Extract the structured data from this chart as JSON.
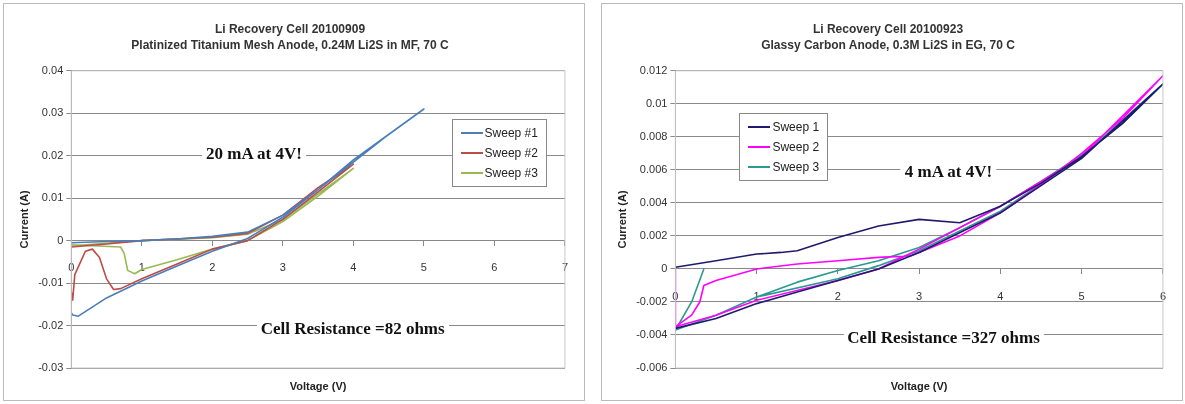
{
  "chart_data": [
    {
      "type": "line",
      "title": "Li Recovery Cell 20100909",
      "subtitle": "Platinized Titanium Mesh Anode, 0.24M Li2S in MF, 70 C",
      "xlabel": "Voltage (V)",
      "ylabel": "Current (A)",
      "xlim": [
        0,
        7
      ],
      "xticks": [
        0,
        1,
        2,
        3,
        4,
        5,
        6,
        7
      ],
      "ylim": [
        -0.03,
        0.04
      ],
      "yticks": [
        -0.03,
        -0.02,
        -0.01,
        0,
        0.01,
        0.02,
        0.03,
        0.04
      ],
      "grid": "y",
      "legend": "top right",
      "annotations": [
        "20 mA at 4V!",
        "Cell Resistance =82 ohms"
      ],
      "series": [
        {
          "name": "Sweep #1",
          "color": "#4a7ebb",
          "x": [
            0,
            0.5,
            1,
            1.5,
            2,
            2.5,
            3,
            3.5,
            4,
            4.5,
            5,
            4.5,
            4,
            3.5,
            3,
            2.5,
            2,
            1.5,
            1,
            0.5,
            0.1,
            0.02,
            0
          ],
          "values": [
            -0.0005,
            -0.0002,
            0,
            0.0004,
            0.001,
            0.002,
            0.006,
            0.012,
            0.019,
            0.025,
            0.031,
            0.025,
            0.0185,
            0.012,
            0.0055,
            0.0005,
            -0.0025,
            -0.006,
            -0.0095,
            -0.0135,
            -0.0178,
            -0.0175,
            -0.017
          ]
        },
        {
          "name": "Sweep #2",
          "color": "#be4b48",
          "x": [
            0,
            0.5,
            1,
            2,
            2.5,
            3,
            3.5,
            4,
            3.5,
            3,
            2.5,
            2,
            1.5,
            1,
            0.7,
            0.6,
            0.5,
            0.4,
            0.3,
            0.2,
            0.05,
            0.02,
            0
          ],
          "values": [
            -0.0015,
            -0.0008,
            0,
            0.0008,
            0.0017,
            0.006,
            0.0125,
            0.018,
            0.0115,
            0.005,
            0,
            -0.002,
            -0.0055,
            -0.009,
            -0.0113,
            -0.0115,
            -0.009,
            -0.004,
            -0.002,
            -0.0025,
            -0.008,
            -0.014,
            -0.012
          ]
        },
        {
          "name": "Sweep #3",
          "color": "#98b954",
          "x": [
            0,
            0.5,
            1,
            2,
            2.5,
            3,
            3.5,
            4,
            3.5,
            3,
            2.5,
            2,
            1.5,
            1,
            0.9,
            0.8,
            0.75,
            0.7,
            0.3,
            0
          ],
          "values": [
            -0.0012,
            -0.0006,
            0,
            0.0007,
            0.0015,
            0.005,
            0.011,
            0.017,
            0.0105,
            0.0045,
            0,
            -0.002,
            -0.0045,
            -0.0068,
            -0.0078,
            -0.007,
            -0.003,
            -0.0015,
            -0.0012,
            -0.001
          ]
        }
      ]
    },
    {
      "type": "line",
      "title": "Li Recovery Cell 20100923",
      "subtitle": "Glassy Carbon Anode, 0.3M Li2S in EG, 70 C",
      "xlabel": "Voltage (V)",
      "ylabel": "Current (A)",
      "xlim": [
        0,
        6
      ],
      "xticks": [
        0,
        1,
        2,
        3,
        4,
        5,
        6
      ],
      "ylim": [
        -0.006,
        0.012
      ],
      "yticks": [
        -0.006,
        -0.004,
        -0.002,
        0,
        0.002,
        0.004,
        0.006,
        0.008,
        0.01,
        0.012
      ],
      "grid": "y",
      "legend": "top left",
      "annotations": [
        "4 mA at 4V!",
        "Cell Resistance =327 ohms"
      ],
      "series": [
        {
          "name": "Sweep 1",
          "color": "#1f1a6e",
          "x": [
            0,
            0.5,
            1,
            1.3,
            1.5,
            2,
            2.5,
            3,
            3.5,
            4,
            4.5,
            5,
            5.5,
            6,
            5,
            4,
            3,
            2.5,
            2,
            1.5,
            1,
            0.5,
            0
          ],
          "values": [
            0.0001,
            0.0005,
            0.0009,
            0.001,
            0.0011,
            0.0019,
            0.0026,
            0.003,
            0.0028,
            0.0038,
            0.0052,
            0.0068,
            0.0088,
            0.0112,
            0.0067,
            0.0034,
            0.001,
            0,
            -0.0007,
            -0.0014,
            -0.0021,
            -0.003,
            -0.0036
          ]
        },
        {
          "name": "Sweep 2",
          "color": "#ff00ff",
          "x": [
            0,
            0,
            0.2,
            0.3,
            0.35,
            0.5,
            1,
            1.5,
            2,
            2.5,
            2.9,
            3.5,
            4,
            4.5,
            5,
            5.5,
            6,
            5,
            4,
            3,
            2.5,
            2,
            1,
            0.5,
            0
          ],
          "values": [
            0,
            -0.0035,
            -0.0028,
            -0.002,
            -0.001,
            -0.0007,
            0,
            0.0003,
            0.0005,
            0.0007,
            0.0008,
            0.002,
            0.0034,
            0.0051,
            0.007,
            0.0091,
            0.0117,
            0.0068,
            0.0038,
            0.0012,
            0,
            -0.0007,
            -0.0019,
            -0.0028,
            -0.0035
          ]
        },
        {
          "name": "Sweep 3",
          "color": "#2a9a8f",
          "x": [
            0.35,
            0.2,
            0,
            0.5,
            1,
            1.5,
            2,
            2.5,
            3,
            3.5,
            4,
            4.5,
            5,
            5.5,
            6,
            5,
            4,
            3,
            2.5,
            2,
            1,
            0.5,
            0
          ],
          "values": [
            0,
            -0.002,
            -0.0037,
            -0.0028,
            -0.0017,
            -0.0008,
            -0.0001,
            0.0005,
            0.0013,
            0.0025,
            0.0038,
            0.0053,
            0.0069,
            0.0088,
            0.0112,
            0.0068,
            0.0035,
            0.0011,
            0.0002,
            -0.0006,
            -0.0017,
            -0.0028,
            -0.0037
          ]
        }
      ]
    }
  ]
}
